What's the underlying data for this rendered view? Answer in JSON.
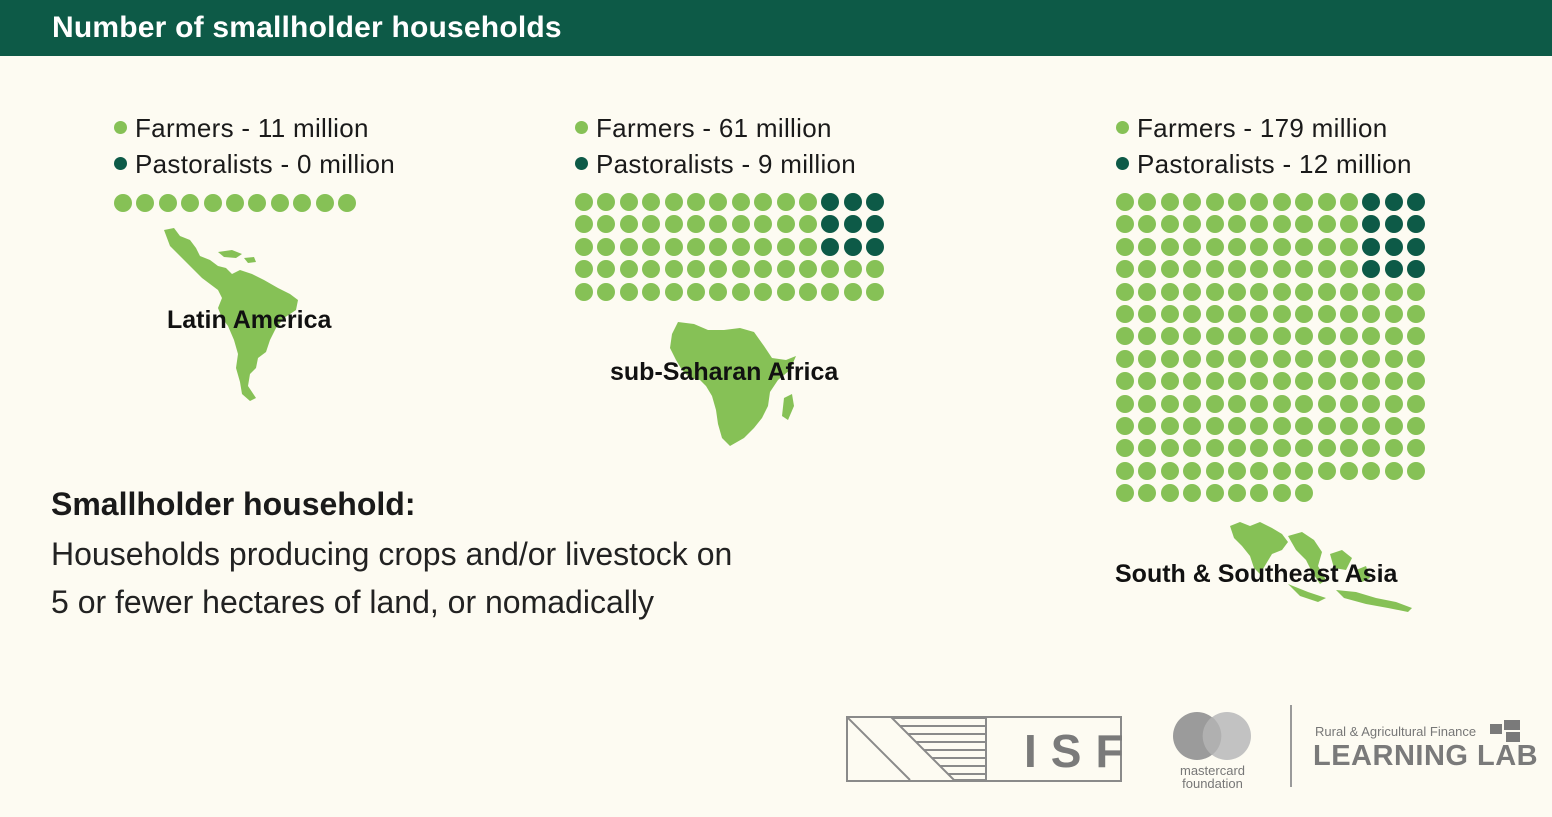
{
  "title": "Number of smallholder households",
  "colors": {
    "header": "#0d5a47",
    "farmers": "#86c156",
    "pastoralists": "#0d5a47",
    "map": "#86c156"
  },
  "chart_data": [
    {
      "type": "waffle",
      "region": "Latin America",
      "unit": "million",
      "series": [
        {
          "name": "Farmers",
          "label": "Farmers - 11 million",
          "value": 11
        },
        {
          "name": "Pastoralists",
          "label": "Pastoralists - 0 million",
          "value": 0
        }
      ]
    },
    {
      "type": "waffle",
      "region": "sub-Saharan Africa",
      "unit": "million",
      "series": [
        {
          "name": "Farmers",
          "label": "Farmers - 61 million",
          "value": 61
        },
        {
          "name": "Pastoralists",
          "label": "Pastoralists - 9 million",
          "value": 9
        }
      ]
    },
    {
      "type": "waffle",
      "region": "South & Southeast Asia",
      "unit": "million",
      "series": [
        {
          "name": "Farmers",
          "label": "Farmers - 179 million",
          "value": 179
        },
        {
          "name": "Pastoralists",
          "label": "Pastoralists - 12 million",
          "value": 12
        }
      ]
    }
  ],
  "definition": {
    "term": "Smallholder household:",
    "line1": "Households producing crops and/or livestock on",
    "line2": "5 or fewer hectares of land, or nomadically"
  },
  "logos": {
    "isf": "ISF",
    "mastercard_line1": "mastercard",
    "mastercard_line2": "foundation",
    "learning_lab_small": "Rural & Agricultural Finance",
    "learning_lab_big": "LEARNING LAB"
  }
}
